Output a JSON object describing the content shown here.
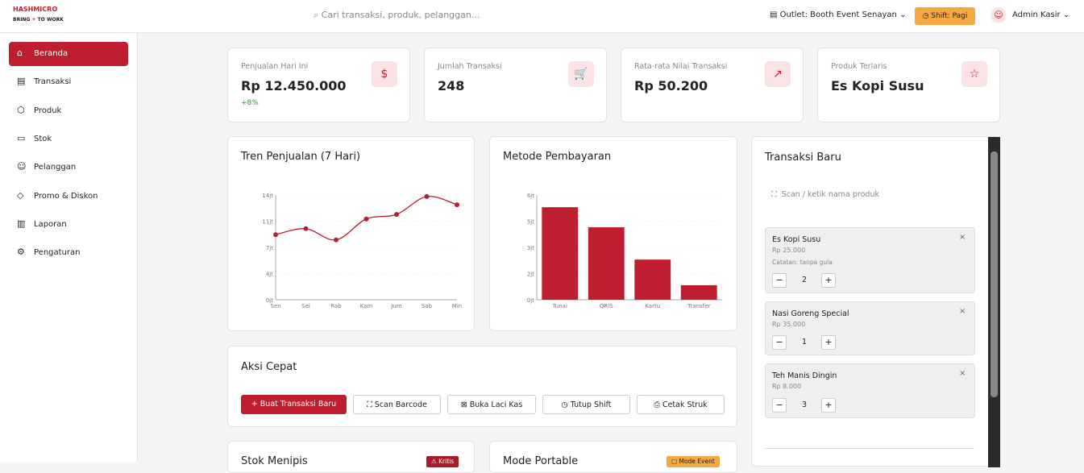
{
  "header": {
    "logo": "HASHMICRO",
    "tagline_start": "BRING",
    "tagline_end": "TO WORK",
    "search_placeholder": "Cari transaksi, produk, pelanggan...",
    "outlet": "Outlet: Booth Event Senayan",
    "shift": "Shift: Pagi",
    "user": "Admin Kasir"
  },
  "sidebar": [
    "Beranda",
    "Transaksi",
    "Produk",
    "Stok",
    "Pelanggan",
    "Promo & Diskon",
    "Laporan",
    "Pengaturan"
  ],
  "stats": [
    {
      "label": "Penjualan Hari Ini",
      "value": "Rp 12.450.000",
      "change": "+8%"
    },
    {
      "label": "Jumlah Transaksi",
      "value": "248"
    },
    {
      "label": "Rata-rata Nilai Transaksi",
      "value": "Rp 50.200"
    },
    {
      "label": "Produk Terlaris",
      "value": "Es Kopi Susu"
    }
  ],
  "chart_data": [
    {
      "type": "line",
      "title": "Tren Penjualan (7 Hari)",
      "categories": [
        "Sen",
        "Sel",
        "Rab",
        "Kam",
        "Jum",
        "Sab",
        "Min"
      ],
      "values": [
        8.7,
        9.5,
        8.0,
        10.8,
        11.4,
        13.8,
        12.7
      ],
      "color": "#b3202e",
      "ylim": [
        0,
        14
      ],
      "yticks": [
        {
          "value": 0,
          "label": "0jt"
        },
        {
          "value": 3.5,
          "label": "4jt"
        },
        {
          "value": 7,
          "label": "7jt"
        },
        {
          "value": 10.5,
          "label": "11jt"
        },
        {
          "value": 14,
          "label": "14jt"
        }
      ],
      "grid": true
    },
    {
      "type": "bar",
      "title": "Metode Pembayaran",
      "categories": [
        "Tunai",
        "QRIS",
        "Kartu",
        "Transfer"
      ],
      "values": [
        5.3,
        4.15,
        2.3,
        0.83
      ],
      "color": "#be1e2d",
      "ylim": [
        0,
        6
      ],
      "yticks": [
        {
          "value": 0,
          "label": "0jt"
        },
        {
          "value": 1.5,
          "label": "2jt"
        },
        {
          "value": 3,
          "label": "3jt"
        },
        {
          "value": 4.5,
          "label": "5jt"
        },
        {
          "value": 6,
          "label": "6jt"
        }
      ],
      "grid": true
    }
  ],
  "transactions": {
    "title": "Transaksi Baru",
    "scan_placeholder": "Scan / ketik nama produk",
    "items": [
      {
        "name": "Es Kopi Susu",
        "price": "Rp 25.000",
        "note": "Catatan: tanpa gula",
        "qty": 2
      },
      {
        "name": "Nasi Goreng Special",
        "price": "Rp 35.000",
        "qty": 1
      },
      {
        "name": "Teh Manis Dingin",
        "price": "Rp 8.000",
        "qty": 3
      }
    ]
  },
  "quick_actions": {
    "title": "Aksi Cepat",
    "buttons": [
      "Buat Transaksi Baru",
      "Scan Barcode",
      "Buka Laci Kas",
      "Tutup Shift",
      "Cetak Struk"
    ]
  },
  "bottom": {
    "low_stock_title": "Stok Menipis",
    "low_stock_badge": "Kritis",
    "portable_title": "Mode Portable",
    "portable_badge": "Mode Event"
  }
}
